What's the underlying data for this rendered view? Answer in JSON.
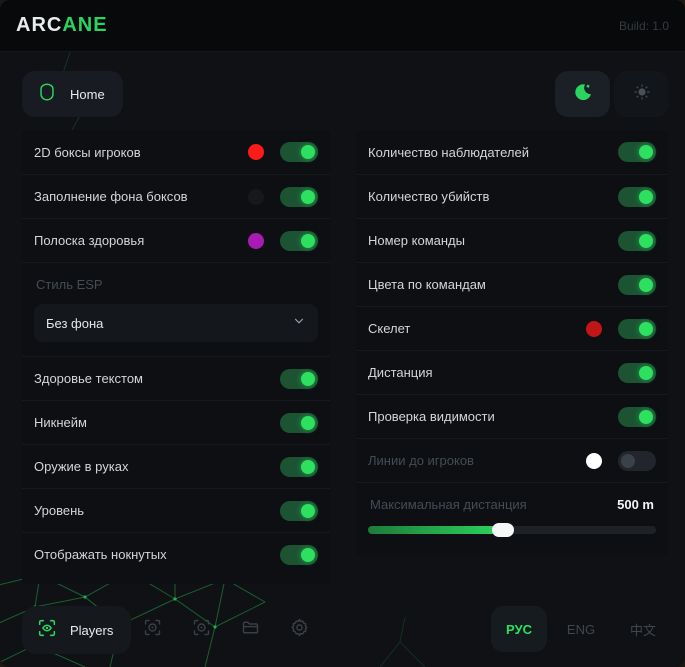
{
  "header": {
    "brand_prefix": "ARC",
    "brand_suffix": "ANE",
    "build": "Build: 1.0"
  },
  "toolbar": {
    "home_label": "Home",
    "theme_active": "dark"
  },
  "colors": {
    "accent_green": "#2bd45e",
    "toggle_on_track": "#1c5433",
    "toggle_knob": "#2de05f"
  },
  "panels": {
    "left": {
      "rows": [
        {
          "label": "2D боксы игроков",
          "swatch": "#ff1a1a",
          "on": true
        },
        {
          "label": "Заполнение фона боксов",
          "swatch": "#16181a",
          "on": true
        },
        {
          "label": "Полоска здоровья",
          "swatch": "#a81cb4",
          "on": true
        },
        {
          "label": "Стиль ESP",
          "value": "Без фона"
        },
        {
          "label": "Здоровье текстом",
          "on": true
        },
        {
          "label": "Никнейм",
          "on": true
        },
        {
          "label": "Оружие в руках",
          "on": true
        },
        {
          "label": "Уровень",
          "on": true
        },
        {
          "label": "Отображать нокнутых",
          "on": true
        }
      ]
    },
    "right": {
      "rows": [
        {
          "label": "Количество наблюдателей",
          "on": true
        },
        {
          "label": "Количество убийств",
          "on": true
        },
        {
          "label": "Номер команды",
          "on": true
        },
        {
          "label": "Цвета по командам",
          "on": true
        },
        {
          "label": "Скелет",
          "swatch": "#c01616",
          "on": true
        },
        {
          "label": "Дистанция",
          "on": true
        },
        {
          "label": "Проверка видимости",
          "on": true
        },
        {
          "label": "Линии до игроков",
          "swatch": "#ffffff",
          "on": false,
          "disabled": true
        },
        {
          "label": "Максимальная дистанция",
          "value": "500 m",
          "pct": 47,
          "disabled": true
        }
      ]
    }
  },
  "footer": {
    "players_label": "Players",
    "icons": [
      "aim-target",
      "scan-target",
      "configs-folder",
      "settings-gear"
    ],
    "languages": [
      {
        "label": "РУС",
        "active": true
      },
      {
        "label": "ENG",
        "active": false
      },
      {
        "label": "中文",
        "active": false
      }
    ]
  }
}
